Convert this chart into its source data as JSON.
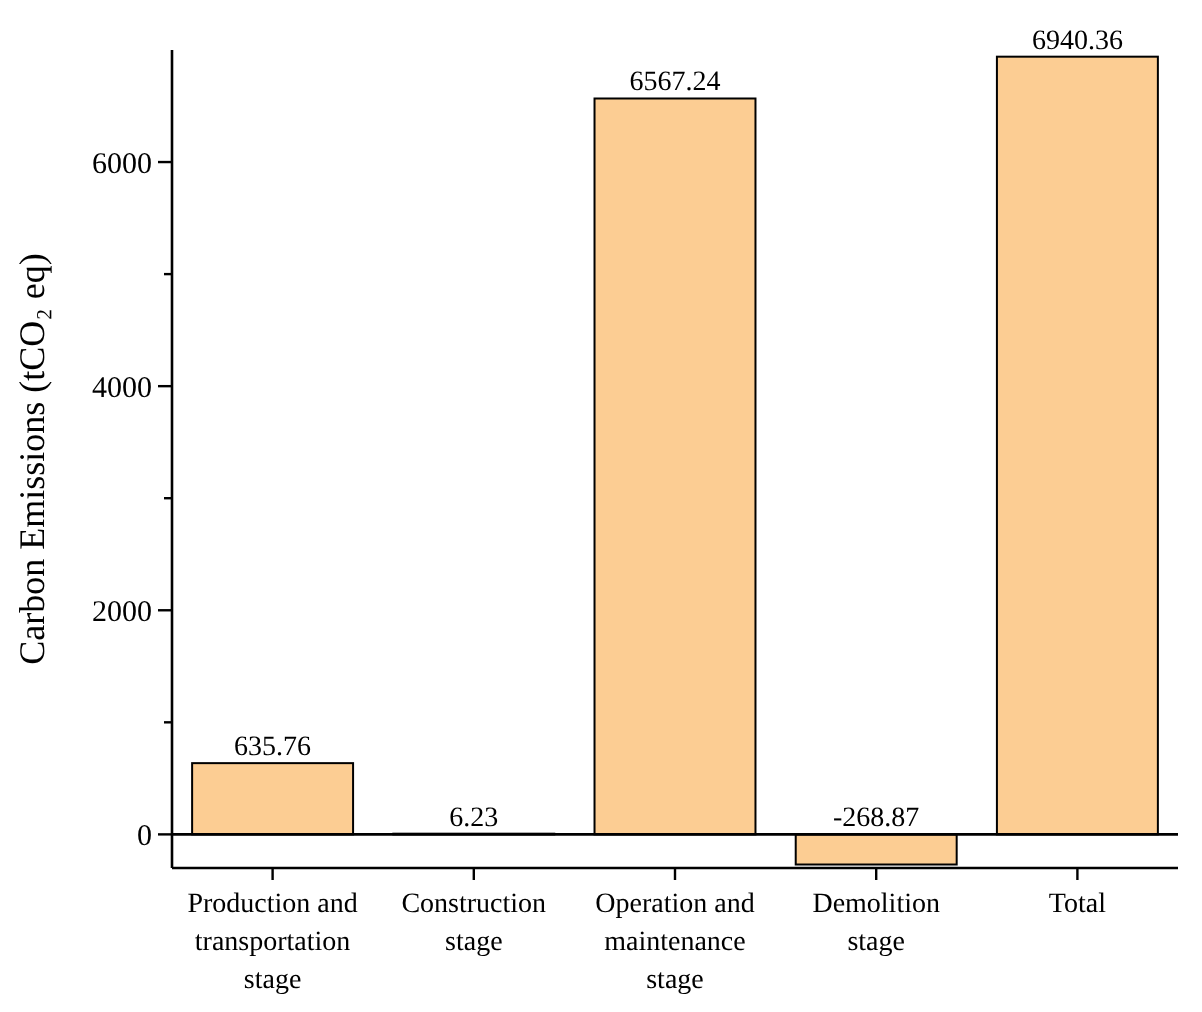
{
  "chart_data": {
    "type": "bar",
    "ylabel": "Carbon Emissions (tCO₂ eq)",
    "categories": [
      "Production and transportation stage",
      "Construction stage",
      "Operation and maintenance stage",
      "Demolition stage",
      "Total"
    ],
    "values": [
      635.76,
      6.23,
      6567.24,
      -268.87,
      6940.36
    ],
    "color": "#fccd93",
    "data_labels": true,
    "grid": false,
    "ylim": [
      -300,
      7000
    ],
    "yticks": [
      0,
      {
        "value": 1000,
        "label": null
      },
      2000,
      {
        "value": 3000,
        "label": null
      },
      4000,
      {
        "value": 5000,
        "label": null
      },
      6000
    ],
    "ref_lines": [
      {
        "axis": "y",
        "value": 0,
        "label": null,
        "color": "#000000"
      }
    ]
  }
}
